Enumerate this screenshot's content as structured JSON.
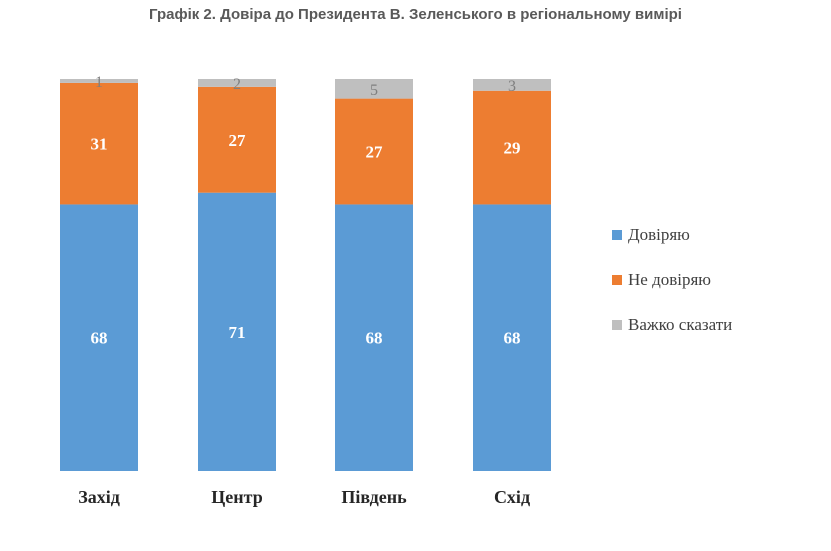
{
  "chart_data": {
    "type": "bar",
    "stacked": true,
    "title": "Графік 2. Довіра до Президента В. Зеленського в регіональному вимірі",
    "categories": [
      "Захід",
      "Центр",
      "Південь",
      "Схід"
    ],
    "series": [
      {
        "name": "Довіряю",
        "values": [
          68,
          71,
          68,
          68
        ],
        "color": "#5b9bd5"
      },
      {
        "name": "Не довіряю",
        "values": [
          31,
          27,
          27,
          29
        ],
        "color": "#ed7d31"
      },
      {
        "name": "Важко сказати",
        "values": [
          1,
          2,
          5,
          3
        ],
        "color": "#bfbfbf"
      }
    ],
    "ylim": [
      0,
      100
    ],
    "grid": false,
    "legend_position": "right"
  }
}
